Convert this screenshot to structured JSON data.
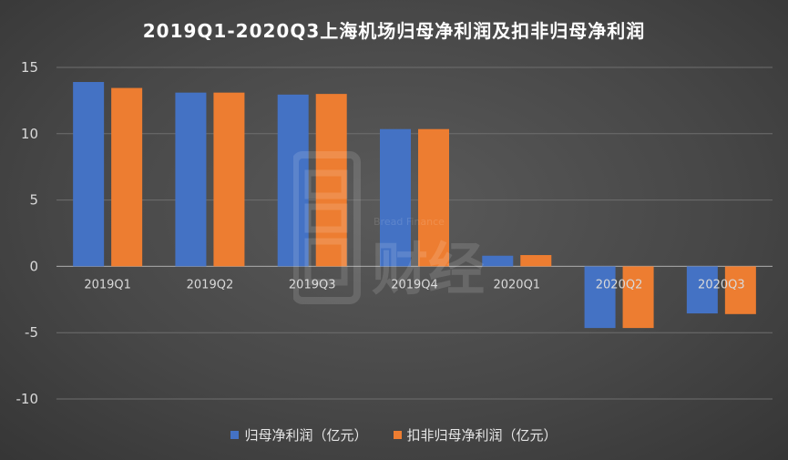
{
  "chart_data": {
    "type": "bar",
    "title": "2019Q1-2020Q3上海机场归母净利润及扣非归母净利润",
    "categories": [
      "2019Q1",
      "2019Q2",
      "2019Q3",
      "2019Q4",
      "2020Q1",
      "2020Q2",
      "2020Q3"
    ],
    "series": [
      {
        "name": "归母净利润（亿元）",
        "color": "#4472C4",
        "values": [
          13.9,
          13.1,
          12.95,
          10.35,
          0.8,
          -4.65,
          -3.55
        ]
      },
      {
        "name": "扣非归母净利润（亿元）",
        "color": "#ED7D31",
        "values": [
          13.45,
          13.1,
          13.0,
          10.35,
          0.85,
          -4.65,
          -3.6
        ]
      }
    ],
    "ylim": [
      -10,
      15
    ],
    "yticks": [
      15,
      10,
      5,
      0,
      -5,
      -10
    ],
    "xlabel": "",
    "ylabel": "",
    "grid": true,
    "legend_position": "bottom"
  },
  "watermark": {
    "text": "Bread Finance",
    "chars": "财经"
  }
}
